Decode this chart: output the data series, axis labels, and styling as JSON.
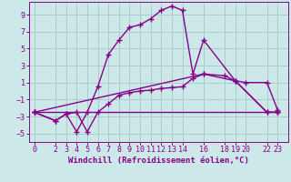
{
  "background_color": "#cce8e8",
  "grid_color": "#aacccc",
  "line_color": "#880088",
  "markersize": 4,
  "linewidth": 1.0,
  "xlabel": "Windchill (Refroidissement éolien,°C)",
  "xlabel_fontsize": 6.5,
  "tick_fontsize": 6.0,
  "ylim": [
    -6.0,
    10.5
  ],
  "xlim": [
    -0.5,
    24.0
  ],
  "yticks": [
    -5,
    -3,
    -1,
    1,
    3,
    5,
    7,
    9
  ],
  "xtick_labels": [
    "0",
    "2",
    "3",
    "4",
    "5",
    "6",
    "7",
    "8",
    "9",
    "10",
    "11",
    "12",
    "13",
    "14",
    "16",
    "18",
    "19",
    "20",
    "22",
    "23"
  ],
  "xtick_positions": [
    0,
    2,
    3,
    4,
    5,
    6,
    7,
    8,
    9,
    10,
    11,
    12,
    13,
    14,
    16,
    18,
    19,
    20,
    22,
    23
  ],
  "series1_x": [
    0,
    2,
    3,
    4,
    5,
    6,
    7,
    8,
    9,
    10,
    11,
    12,
    13,
    14,
    15,
    16,
    19,
    22,
    23
  ],
  "series1_y": [
    -2.5,
    -3.5,
    -2.7,
    -4.8,
    -2.5,
    0.5,
    4.3,
    6.0,
    7.5,
    7.8,
    8.5,
    9.5,
    10.0,
    9.5,
    2.0,
    6.0,
    1.2,
    -2.5,
    -2.5
  ],
  "series2_x": [
    0,
    2,
    3,
    4,
    5,
    6,
    7,
    8,
    9,
    10,
    11,
    12,
    13,
    14,
    15,
    16,
    18,
    19,
    20,
    22,
    23
  ],
  "series2_y": [
    -2.5,
    -3.5,
    -2.7,
    -2.5,
    -4.8,
    -2.5,
    -1.5,
    -0.5,
    -0.2,
    0.0,
    0.1,
    0.3,
    0.4,
    0.5,
    1.5,
    2.0,
    1.8,
    1.2,
    1.0,
    1.0,
    -2.2
  ],
  "series3_x": [
    0,
    23
  ],
  "series3_y": [
    -2.5,
    -2.5
  ],
  "series4_x": [
    0,
    16,
    19,
    22,
    23
  ],
  "series4_y": [
    -2.5,
    2.0,
    1.2,
    -2.5,
    -2.5
  ]
}
